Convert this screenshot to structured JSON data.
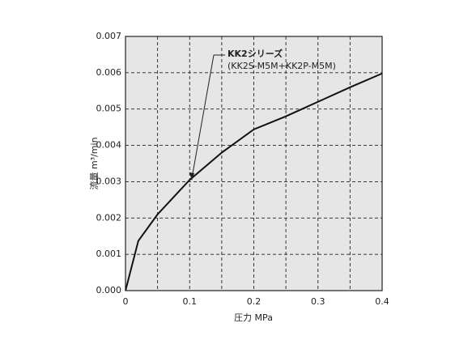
{
  "chart_data": {
    "type": "line",
    "x_label": "圧力 MPa",
    "y_label": "流量 m³/min",
    "annotation": [
      "KK2シリーズ",
      "(KK2S-M5M+KK2P-M5M)"
    ],
    "xlim": [
      0,
      0.4
    ],
    "ylim": [
      0,
      0.007
    ],
    "xticks": [
      0,
      0.1,
      0.2,
      0.3,
      0.4
    ],
    "x_minor_grid": [
      0.05,
      0.15,
      0.25,
      0.35
    ],
    "yticks": [
      {
        "value": 0,
        "label": "0.000"
      },
      {
        "value": 0.001,
        "label": "0.001"
      },
      {
        "value": 0.002,
        "label": "0.002"
      },
      {
        "value": 0.003,
        "label": "0.003"
      },
      {
        "value": 0.004,
        "label": "0.004"
      },
      {
        "value": 0.005,
        "label": "0.005"
      },
      {
        "value": 0.006,
        "label": "0.006"
      },
      {
        "value": 0.007,
        "label": "0.007"
      }
    ],
    "grid": true,
    "plot_background": "#e6e6e6",
    "color": "#111111",
    "x": [
      0,
      0.02,
      0.05,
      0.1,
      0.15,
      0.2,
      0.25,
      0.3,
      0.35,
      0.4
    ],
    "values": [
      0,
      0.00137,
      0.0021,
      0.00305,
      0.0038,
      0.00444,
      0.0048,
      0.0052,
      0.0056,
      0.00598
    ]
  }
}
